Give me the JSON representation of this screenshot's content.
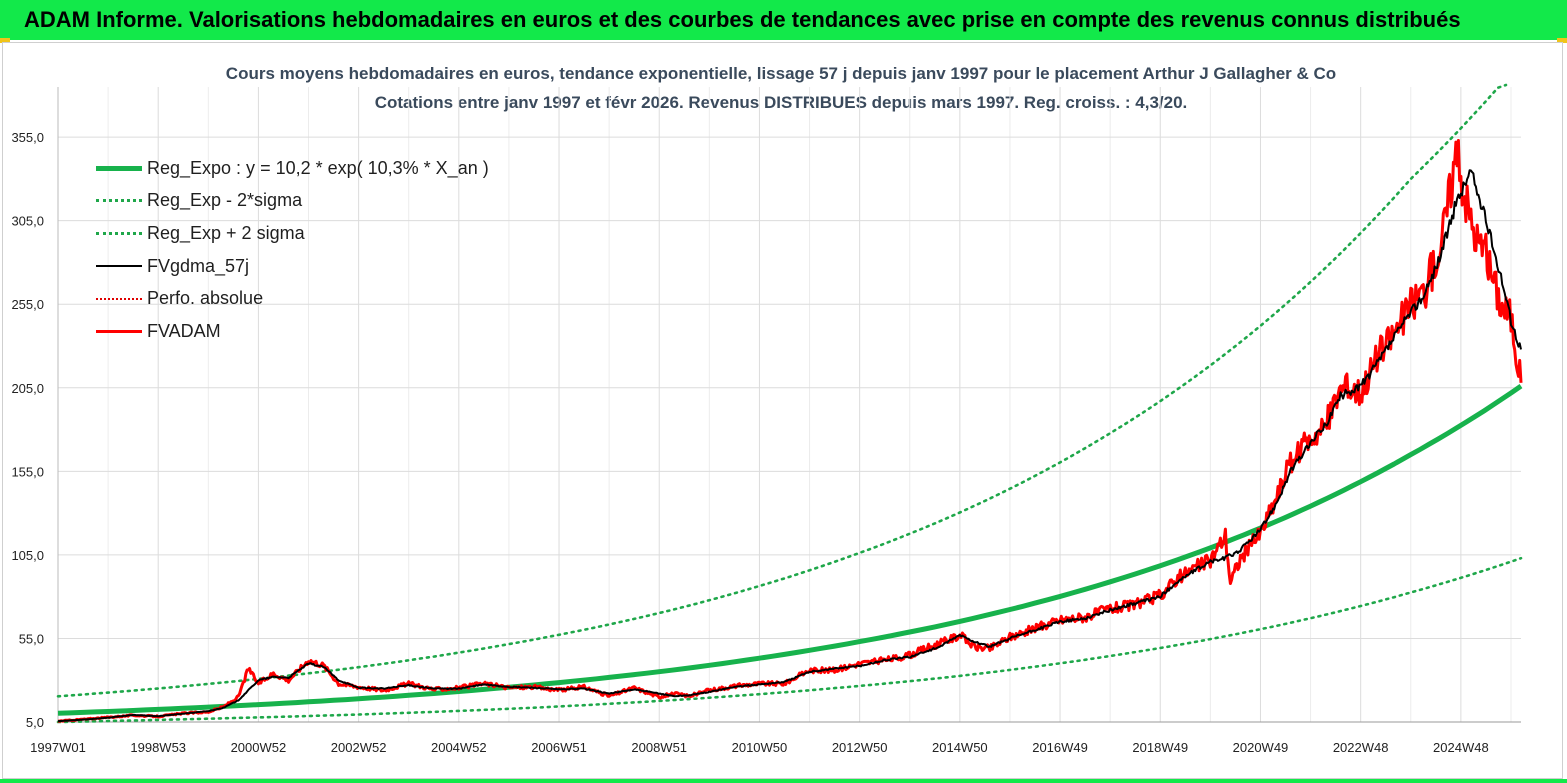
{
  "header": {
    "title": "ADAM Informe. Valorisations hebdomadaires en euros et des courbes de tendances avec prise en compte des revenus connus distribués"
  },
  "colors": {
    "banner": "#12e94a",
    "reg_expo": "#17b24c",
    "sigma": "#1fa74a",
    "fvgdma": "#000000",
    "perfo": "#e00000",
    "fvadam": "#ff0000"
  },
  "chart_data": {
    "type": "line",
    "title": "Cours moyens hebdomadaires en euros, tendance exponentielle, lissage 57 j depuis janv 1997 pour le placement Arthur J Gallagher & Co",
    "subtitle": "Cotations entre janv 1997 et févr 2026. Revenus DISTRIBUES depuis mars 1997. Reg. croiss. : 4,3/20.",
    "xlabel": "",
    "ylabel": "",
    "ylim": [
      5,
      385
    ],
    "xlim": [
      1997.0,
      2026.2
    ],
    "y_ticks": [
      "355,0",
      "305,0",
      "255,0",
      "205,0",
      "155,0",
      "105,0",
      "55,0",
      "5,0"
    ],
    "y_tick_values": [
      355,
      305,
      255,
      205,
      155,
      105,
      55,
      5
    ],
    "x_ticks": [
      "1997W01",
      "1998W53",
      "2000W52",
      "2002W52",
      "2004W52",
      "2006W51",
      "2008W51",
      "2010W50",
      "2012W50",
      "2014W50",
      "2016W49",
      "2018W49",
      "2020W49",
      "2022W48",
      "2024W48"
    ],
    "x_tick_values": [
      1997.0,
      1999.0,
      2001.0,
      2003.0,
      2005.0,
      2007.0,
      2009.0,
      2011.0,
      2013.0,
      2015.0,
      2017.0,
      2019.0,
      2021.0,
      2023.0,
      2025.0
    ],
    "grid": true,
    "legend_position": "top-left",
    "series": [
      {
        "name": "Reg_Expo : y = 10,2 * exp( 10,3% *  X_an )",
        "style": "thick",
        "x": [
          1997,
          2000,
          2003,
          2006,
          2009,
          2012,
          2015,
          2018,
          2020,
          2022,
          2024,
          2026.2
        ],
        "values": [
          10.2,
          13.9,
          18.9,
          25.8,
          35.1,
          47.9,
          65.2,
          88.9,
          109.2,
          134.2,
          165.0,
          206.0
        ]
      },
      {
        "name": "Reg_Exp - 2*sigma",
        "style": "dotted",
        "x": [
          1997,
          2000,
          2003,
          2006,
          2009,
          2012,
          2015,
          2018,
          2020,
          2022,
          2024,
          2026.2
        ],
        "values": [
          5.0,
          7.0,
          9.5,
          12.9,
          17.6,
          24.0,
          32.6,
          44.5,
          54.6,
          67.1,
          82.5,
          103.0
        ]
      },
      {
        "name": "Reg_Exp + 2 sigma",
        "style": "dotted",
        "x": [
          1997,
          2000,
          2003,
          2006,
          2009,
          2012,
          2015,
          2018,
          2020,
          2022,
          2024,
          2025.9
        ],
        "values": [
          20.4,
          27.8,
          37.8,
          51.6,
          70.2,
          95.8,
          130.4,
          177.8,
          218.4,
          268.4,
          330.0,
          390.0
        ]
      },
      {
        "name": "FVgdma_57j",
        "style": "thin",
        "x": [
          1997.0,
          1997.5,
          1998.0,
          1998.5,
          1999.0,
          1999.5,
          2000.0,
          2000.3,
          2000.6,
          2001.0,
          2001.3,
          2001.6,
          2002.0,
          2002.3,
          2002.6,
          2003.0,
          2003.5,
          2004.0,
          2004.5,
          2005.0,
          2005.5,
          2006.0,
          2006.5,
          2007.0,
          2007.5,
          2008.0,
          2008.5,
          2009.0,
          2009.3,
          2009.6,
          2010.0,
          2010.5,
          2011.0,
          2011.5,
          2012.0,
          2012.5,
          2013.0,
          2013.5,
          2014.0,
          2014.3,
          2014.6,
          2015.0,
          2015.3,
          2015.6,
          2016.0,
          2016.5,
          2017.0,
          2017.5,
          2018.0,
          2018.5,
          2019.0,
          2019.3,
          2019.6,
          2020.0,
          2020.3,
          2020.6,
          2021.0,
          2021.3,
          2021.6,
          2022.0,
          2022.3,
          2022.6,
          2023.0,
          2023.3,
          2023.6,
          2024.0,
          2024.3,
          2024.6,
          2024.9,
          2025.2,
          2025.5,
          2025.8,
          2026.0,
          2026.2
        ],
        "values": [
          5.5,
          6.4,
          7.6,
          9.2,
          8.5,
          10.0,
          11.5,
          13.5,
          18.0,
          30.0,
          32.0,
          31.5,
          40.0,
          38.0,
          30.0,
          25.5,
          25.0,
          27.0,
          25.0,
          25.0,
          27.5,
          26.0,
          25.5,
          24.5,
          25.0,
          22.0,
          24.5,
          22.0,
          20.5,
          21.0,
          23.0,
          26.0,
          27.5,
          29.0,
          35.0,
          37.0,
          38.5,
          42.0,
          44.0,
          47.0,
          50.0,
          57.0,
          53.0,
          50.0,
          55.0,
          60.0,
          65.0,
          67.0,
          72.0,
          76.0,
          80.0,
          88.0,
          94.0,
          101.0,
          103.0,
          108.0,
          120.0,
          135.0,
          155.0,
          172.0,
          183.0,
          200.0,
          206.0,
          218.0,
          232.0,
          250.0,
          262.0,
          285.0,
          315.0,
          335.0,
          305.0,
          272.0,
          245.0,
          228.0
        ]
      },
      {
        "name": "Perfo. absolue",
        "style": "dotted",
        "x": [
          1997.0,
          1999.0,
          2001.0,
          2003.0,
          2005.0,
          2007.0,
          2009.0,
          2011.0,
          2013.0,
          2015.0,
          2017.0,
          2019.0,
          2021.0,
          2023.0,
          2025.0,
          2026.2
        ],
        "values": [
          5.5,
          8.5,
          30.0,
          25.5,
          25.0,
          24.5,
          22.0,
          27.5,
          38.5,
          57.0,
          65.0,
          80.0,
          120.0,
          206.0,
          320.0,
          210.0
        ]
      },
      {
        "name": "FVADAM",
        "style": "thick",
        "x": [
          1997.0,
          1997.5,
          1998.0,
          1998.5,
          1999.0,
          1999.5,
          2000.0,
          2000.3,
          2000.6,
          2000.8,
          2001.0,
          2001.3,
          2001.6,
          2002.0,
          2002.3,
          2002.6,
          2003.0,
          2003.5,
          2004.0,
          2004.5,
          2005.0,
          2005.5,
          2006.0,
          2006.5,
          2007.0,
          2007.5,
          2008.0,
          2008.5,
          2009.0,
          2009.3,
          2009.6,
          2010.0,
          2010.5,
          2011.0,
          2011.5,
          2012.0,
          2012.5,
          2013.0,
          2013.5,
          2014.0,
          2014.3,
          2014.6,
          2015.0,
          2015.3,
          2015.6,
          2016.0,
          2016.5,
          2017.0,
          2017.5,
          2018.0,
          2018.5,
          2019.0,
          2019.3,
          2019.6,
          2020.0,
          2020.3,
          2020.4,
          2020.6,
          2021.0,
          2021.3,
          2021.6,
          2022.0,
          2022.3,
          2022.6,
          2023.0,
          2023.3,
          2023.6,
          2024.0,
          2024.3,
          2024.6,
          2024.9,
          2025.1,
          2025.3,
          2025.5,
          2025.8,
          2026.0,
          2026.2
        ],
        "values": [
          5.5,
          6.6,
          7.8,
          9.0,
          8.3,
          10.2,
          11.0,
          14.0,
          20.0,
          37.0,
          28.0,
          34.0,
          30.0,
          42.0,
          39.0,
          28.0,
          26.0,
          24.0,
          28.0,
          24.5,
          25.5,
          28.0,
          25.5,
          26.0,
          24.0,
          26.0,
          20.5,
          25.5,
          20.0,
          22.0,
          20.5,
          24.0,
          26.5,
          28.0,
          28.0,
          36.0,
          36.0,
          40.0,
          42.0,
          45.0,
          49.0,
          52.0,
          57.0,
          50.0,
          49.0,
          56.0,
          61.0,
          66.0,
          68.0,
          73.0,
          75.0,
          81.0,
          90.0,
          96.0,
          102.0,
          117.0,
          89.0,
          103.0,
          118.0,
          138.0,
          160.0,
          175.0,
          183.0,
          205.0,
          203.0,
          222.0,
          235.0,
          255.0,
          265.0,
          290.0,
          345.0,
          318.0,
          295.0,
          285.0,
          255.0,
          248.0,
          208.0
        ]
      }
    ]
  }
}
